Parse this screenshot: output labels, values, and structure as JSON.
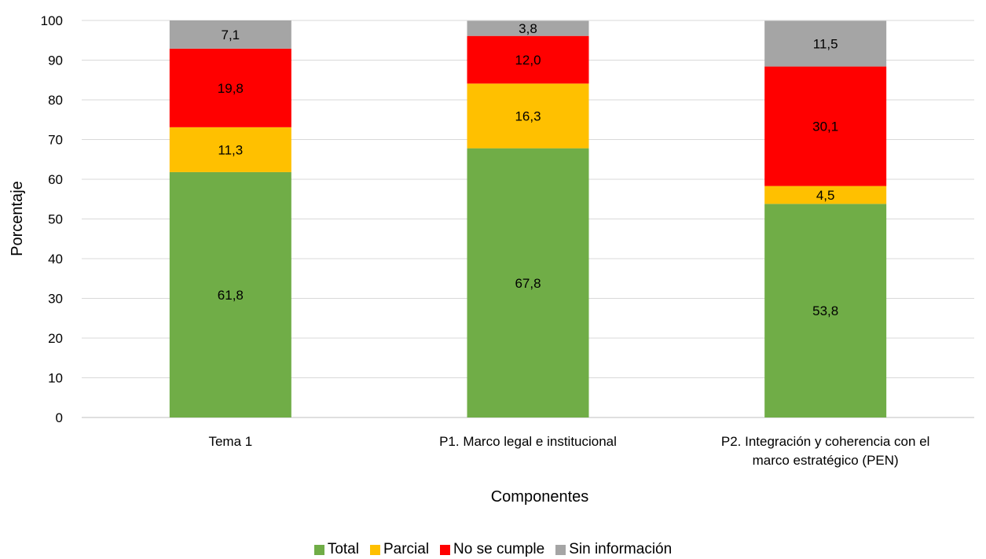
{
  "chart_data": {
    "type": "bar",
    "stacked": true,
    "title": "",
    "xlabel": "Componentes",
    "ylabel": "Porcentaje",
    "ylim": [
      0,
      100
    ],
    "yticks": [
      "0",
      "10",
      "20",
      "30",
      "40",
      "50",
      "60",
      "70",
      "80",
      "90",
      "100"
    ],
    "grid": true,
    "legend_position": "bottom",
    "categories": [
      [
        "Tema 1"
      ],
      [
        "P1.  Marco legal e institucional"
      ],
      [
        "P2. Integración y coherencia con el",
        "marco estratégico (PEN)"
      ]
    ],
    "series": [
      {
        "name": "Total",
        "color": "#70ad47",
        "values": [
          61.8,
          67.8,
          53.8
        ],
        "labels": [
          "61,8",
          "67,8",
          "53,8"
        ]
      },
      {
        "name": "Parcial",
        "color": "#ffc000",
        "values": [
          11.3,
          16.3,
          4.5
        ],
        "labels": [
          "11,3",
          "16,3",
          "4,5"
        ]
      },
      {
        "name": "No se cumple",
        "color": "#ff0000",
        "values": [
          19.8,
          12.0,
          30.1
        ],
        "labels": [
          "19,8",
          "12,0",
          "30,1"
        ]
      },
      {
        "name": "Sin información",
        "color": "#a5a5a5",
        "values": [
          7.1,
          3.8,
          11.5
        ],
        "labels": [
          "7,1",
          "3,8",
          "11,5"
        ]
      }
    ]
  }
}
